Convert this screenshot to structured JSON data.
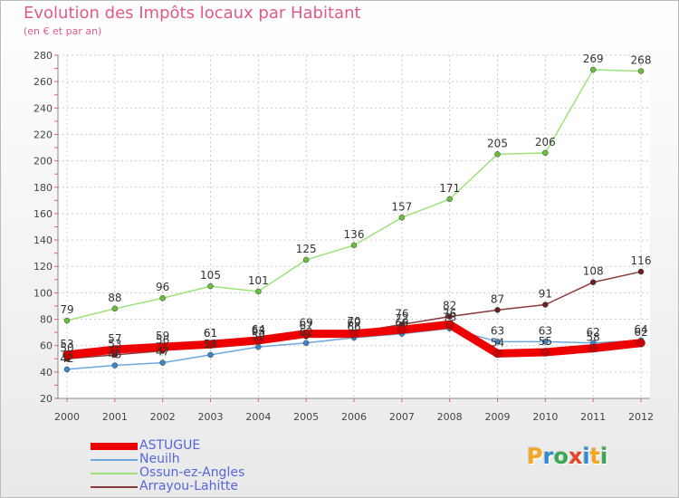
{
  "header": {
    "title": "Evolution des Impôts locaux par Habitant",
    "subtitle": "(en € et par an)"
  },
  "logo": {
    "letters": [
      {
        "char": "P",
        "color": "#f5a623"
      },
      {
        "char": "r",
        "color": "#2e8bcd"
      },
      {
        "char": "o",
        "color": "#3aa655"
      },
      {
        "char": "x",
        "color": "#e2452a"
      },
      {
        "char": "i",
        "color": "#2e8bcd"
      },
      {
        "char": "t",
        "color": "#f5a623"
      },
      {
        "char": "i",
        "color": "#3aa655"
      }
    ]
  },
  "chart_data": {
    "type": "line",
    "title": "Evolution des Impôts locaux par Habitant",
    "subtitle": "(en € et par an)",
    "xlabel": "",
    "ylabel": "",
    "x": [
      2000,
      2001,
      2002,
      2003,
      2004,
      2005,
      2006,
      2007,
      2008,
      2009,
      2010,
      2011,
      2012
    ],
    "ylim": [
      20,
      280
    ],
    "yticks": [
      20,
      40,
      60,
      80,
      100,
      120,
      140,
      160,
      180,
      200,
      220,
      240,
      260,
      280
    ],
    "legend_position": "bottom-left",
    "series": [
      {
        "name": "ASTUGUE",
        "color": "#ee0000",
        "marker": "#cc0000",
        "width": "thick",
        "values": [
          53,
          57,
          59,
          61,
          64,
          69,
          69,
          72,
          76,
          54,
          55,
          58,
          62
        ],
        "labels": [
          "53",
          "57",
          "59",
          "61",
          "64",
          "69",
          "69",
          "72",
          "76",
          "54",
          "55",
          "58",
          "62"
        ]
      },
      {
        "name": "Neuilh",
        "color": "#6fa8dc",
        "marker": "#3d85c6",
        "width": "thin",
        "values": [
          42,
          45,
          47,
          53,
          59,
          62,
          66,
          69,
          73,
          63,
          63,
          62,
          64
        ],
        "labels": [
          "42",
          "45",
          "47",
          "53",
          "59",
          "62",
          "66",
          "69",
          "73",
          "63",
          "63",
          "62",
          "64"
        ]
      },
      {
        "name": "Ossun-ez-Angles",
        "color": "#9be37a",
        "marker": "#6abf3b",
        "width": "thin",
        "values": [
          79,
          88,
          96,
          105,
          101,
          125,
          136,
          157,
          171,
          205,
          206,
          269,
          268
        ],
        "labels": [
          "79",
          "88",
          "96",
          "105",
          "101",
          "125",
          "136",
          "157",
          "171",
          "205",
          "206",
          "269",
          "268"
        ]
      },
      {
        "name": "Arrayou-Lahitte",
        "color": "#8b3a3a",
        "marker": "#6b1f1f",
        "width": "thin",
        "values": [
          50,
          53,
          56,
          61,
          63,
          67,
          70,
          76,
          82,
          87,
          91,
          108,
          116
        ],
        "labels": [
          "50",
          "53",
          "56",
          "61",
          "63",
          "67",
          "70",
          "76",
          "82",
          "87",
          "91",
          "108",
          "116"
        ]
      }
    ]
  }
}
